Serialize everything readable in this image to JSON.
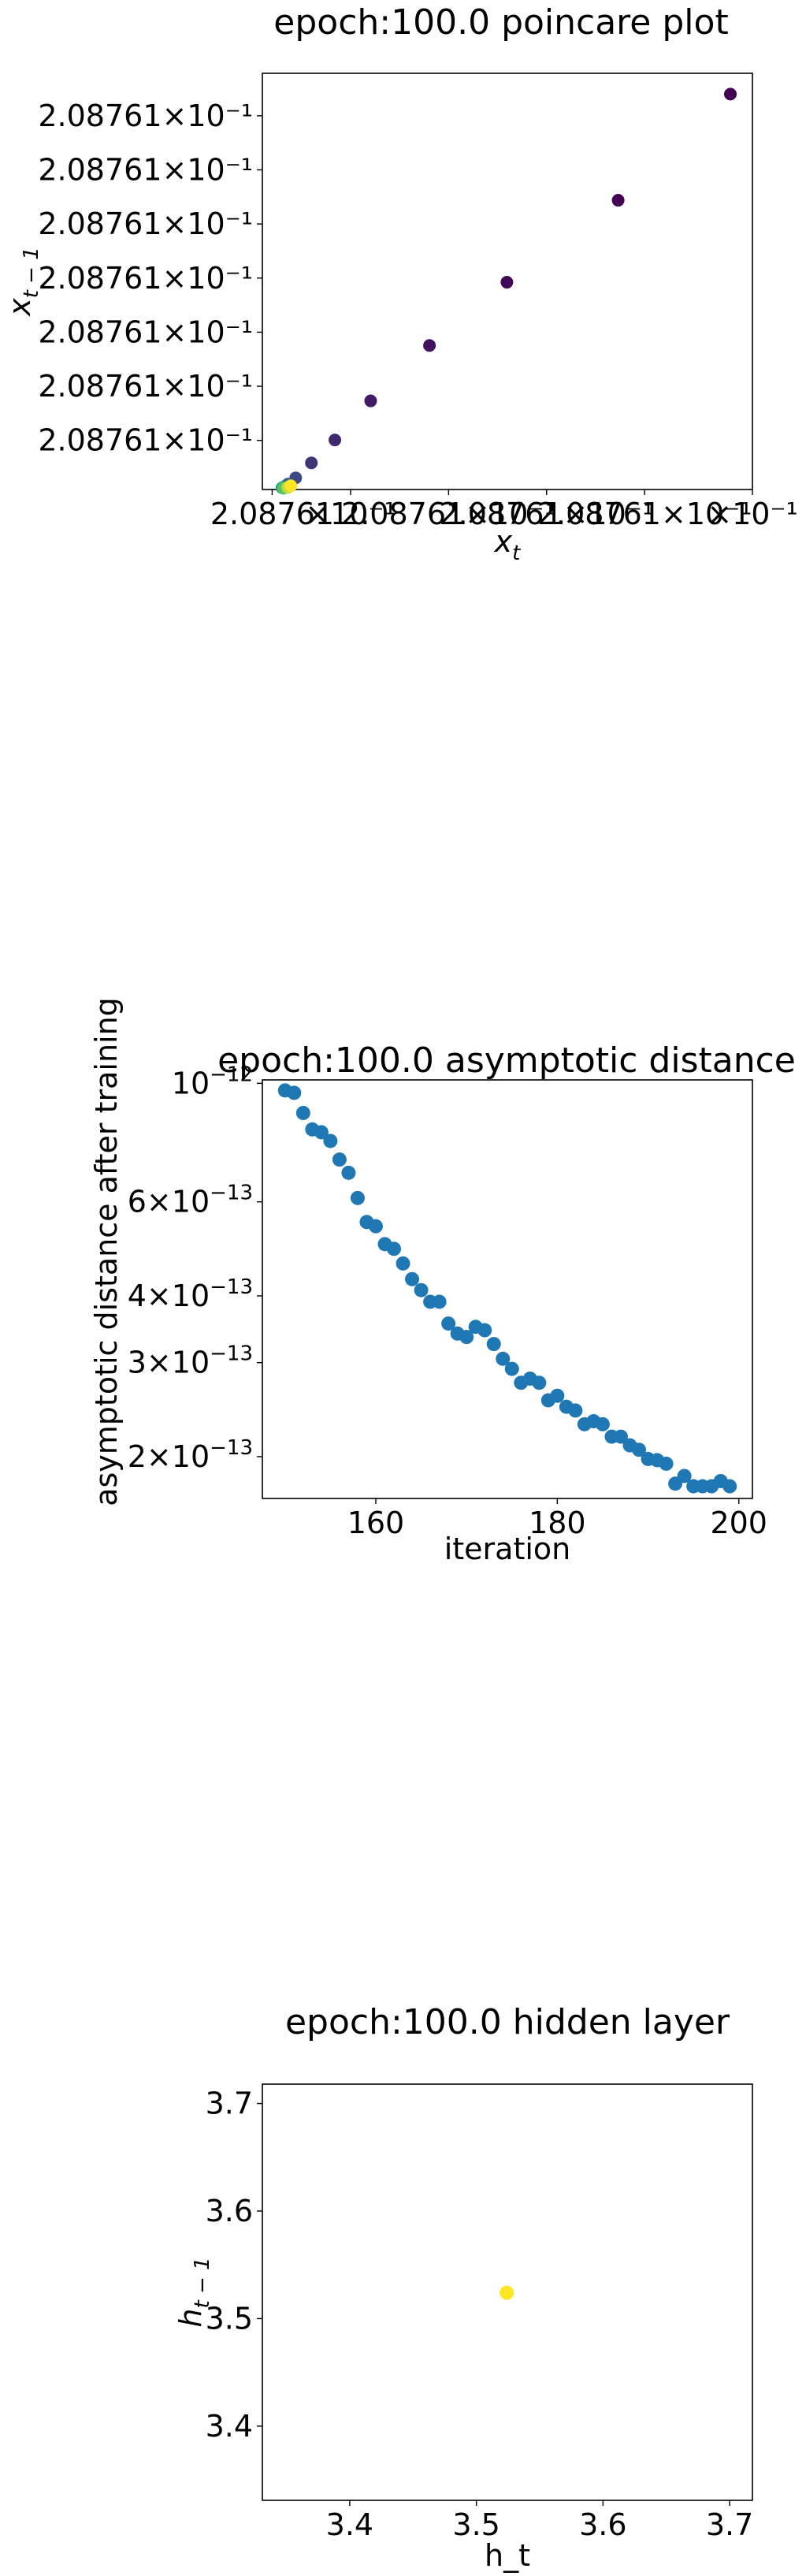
{
  "chart_data": [
    {
      "type": "scatter",
      "title": "epoch:100.0 poincare plot",
      "xlabel_base": "x",
      "xlabel_sub": "t",
      "ylabel_base": "x",
      "ylabel_sub": "t − 1",
      "colormap": "viridis",
      "xlim": [
        0.0,
        1.0
      ],
      "ylim": [
        0.0,
        1.0
      ],
      "xtick_labels": [
        "2.08761",
        "×10⁻¹",
        "2.08761×10⁻¹",
        "2.08761×10⁻¹",
        "2.08761×10⁻¹",
        "×10⁻¹"
      ],
      "xtick_positions": [
        0.02,
        0.18,
        0.38,
        0.58,
        0.78,
        1.0
      ],
      "ytick_labels": [
        "2.08761×10⁻¹",
        "2.08761×10⁻¹",
        "2.08761×10⁻¹",
        "2.08761×10⁻¹",
        "2.08761×10⁻¹",
        "2.08761×10⁻¹",
        "2.08761×10⁻¹"
      ],
      "ytick_positions": [
        0.118,
        0.248,
        0.378,
        0.508,
        0.638,
        0.768,
        0.898
      ],
      "points": [
        {
          "x": 0.955,
          "y": 0.95,
          "c": 0.0
        },
        {
          "x": 0.726,
          "y": 0.695,
          "c": 0.0
        },
        {
          "x": 0.499,
          "y": 0.498,
          "c": 0.02
        },
        {
          "x": 0.341,
          "y": 0.346,
          "c": 0.05
        },
        {
          "x": 0.221,
          "y": 0.213,
          "c": 0.08
        },
        {
          "x": 0.148,
          "y": 0.119,
          "c": 0.12
        },
        {
          "x": 0.1,
          "y": 0.064,
          "c": 0.16
        },
        {
          "x": 0.068,
          "y": 0.028,
          "c": 0.22
        },
        {
          "x": 0.052,
          "y": 0.013,
          "c": 0.3
        },
        {
          "x": 0.045,
          "y": 0.007,
          "c": 0.4
        },
        {
          "x": 0.04,
          "y": 0.004,
          "c": 0.55
        },
        {
          "x": 0.043,
          "y": 0.003,
          "c": 0.72
        },
        {
          "x": 0.052,
          "y": 0.005,
          "c": 0.9
        },
        {
          "x": 0.058,
          "y": 0.009,
          "c": 1.0
        }
      ]
    },
    {
      "type": "scatter",
      "title": "epoch:100.0 asymptotic distance",
      "xlabel": "iteration",
      "ylabel": "asymptotic distance after training",
      "yscale": "log",
      "color": "#1f77b4",
      "xlim": [
        147.5,
        201.5
      ],
      "ylim": [
        1.67e-13,
        1.015e-12
      ],
      "xticks": [
        160,
        180,
        200
      ],
      "xtick_labels": [
        "160",
        "180",
        "200"
      ],
      "yticks": [
        1e-12,
        6e-13,
        4e-13,
        3e-13,
        2e-13
      ],
      "ytick_labels": [
        [
          "10",
          "−12"
        ],
        [
          "6×10",
          "−13"
        ],
        [
          "4×10",
          "−13"
        ],
        [
          "3×10",
          "−13"
        ],
        [
          "2×10",
          "−13"
        ]
      ],
      "x": [
        150,
        151,
        152,
        153,
        154,
        155,
        156,
        157,
        158,
        159,
        160,
        161,
        162,
        163,
        164,
        165,
        166,
        167,
        168,
        169,
        170,
        171,
        172,
        173,
        174,
        175,
        176,
        177,
        178,
        179,
        180,
        181,
        182,
        183,
        184,
        185,
        186,
        187,
        188,
        189,
        190,
        191,
        192,
        193,
        194,
        195,
        196,
        197,
        198,
        199
      ],
      "y": [
        9.7e-13,
        9.6e-13,
        8.8e-13,
        8.2e-13,
        8.1e-13,
        7.8e-13,
        7.2e-13,
        6.8e-13,
        6.1e-13,
        5.5e-13,
        5.4e-13,
        5e-13,
        4.9e-13,
        4.6e-13,
        4.3e-13,
        4.1e-13,
        3.9e-13,
        3.9e-13,
        3.55e-13,
        3.4e-13,
        3.35e-13,
        3.5e-13,
        3.45e-13,
        3.25e-13,
        3.05e-13,
        2.92e-13,
        2.75e-13,
        2.8e-13,
        2.75e-13,
        2.55e-13,
        2.6e-13,
        2.48e-13,
        2.44e-13,
        2.3e-13,
        2.33e-13,
        2.3e-13,
        2.18e-13,
        2.18e-13,
        2.1e-13,
        2.06e-13,
        1.98e-13,
        1.97e-13,
        1.94e-13,
        1.78e-13,
        1.84e-13,
        1.76e-13,
        1.76e-13,
        1.76e-13,
        1.8e-13,
        1.76e-13
      ]
    },
    {
      "type": "scatter",
      "title": "epoch:100.0 hidden layer",
      "xlabel": "h_t",
      "ylabel_base": "h",
      "ylabel_sub": "t − 1",
      "xlim": [
        3.331,
        3.718
      ],
      "ylim": [
        3.331,
        3.718
      ],
      "xticks": [
        3.4,
        3.5,
        3.6,
        3.7
      ],
      "xtick_labels": [
        "3.4",
        "3.5",
        "3.6",
        "3.7"
      ],
      "yticks": [
        3.4,
        3.5,
        3.6,
        3.7
      ],
      "ytick_labels": [
        "3.4",
        "3.5",
        "3.6",
        "3.7"
      ],
      "points": [
        {
          "x": 3.524,
          "y": 3.524,
          "color": "#fde725"
        }
      ]
    }
  ]
}
